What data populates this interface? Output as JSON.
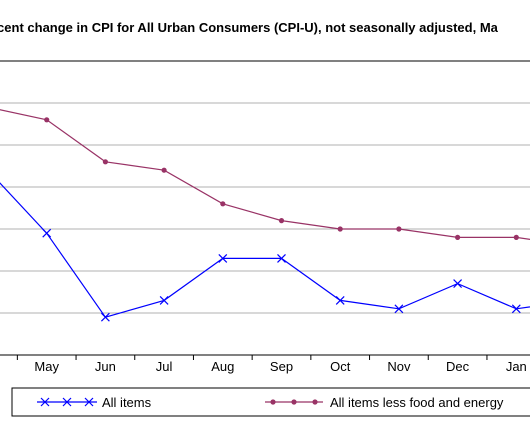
{
  "chart_data": {
    "type": "line",
    "title": "rcent change in CPI for All Urban Consumers (CPI-U), not seasonally adjusted, Ma",
    "categories": [
      "",
      "May",
      "Jun",
      "Jul",
      "Aug",
      "Sep",
      "Oct",
      "Nov",
      "Dec",
      "Jan",
      ""
    ],
    "ylim": [
      0,
      7
    ],
    "grid": true,
    "legend_position": "bottom",
    "series": [
      {
        "name": "All items",
        "color": "#0000ff",
        "marker": "x",
        "values": [
          4.4,
          2.9,
          0.9,
          1.3,
          2.3,
          2.3,
          1.3,
          1.1,
          1.7,
          1.1,
          1.3
        ]
      },
      {
        "name": "All items less food and energy",
        "color": "#993366",
        "marker": "circle",
        "values": [
          5.9,
          5.6,
          4.6,
          4.4,
          3.6,
          3.2,
          3.0,
          3.0,
          2.8,
          2.8,
          2.6
        ]
      }
    ]
  }
}
